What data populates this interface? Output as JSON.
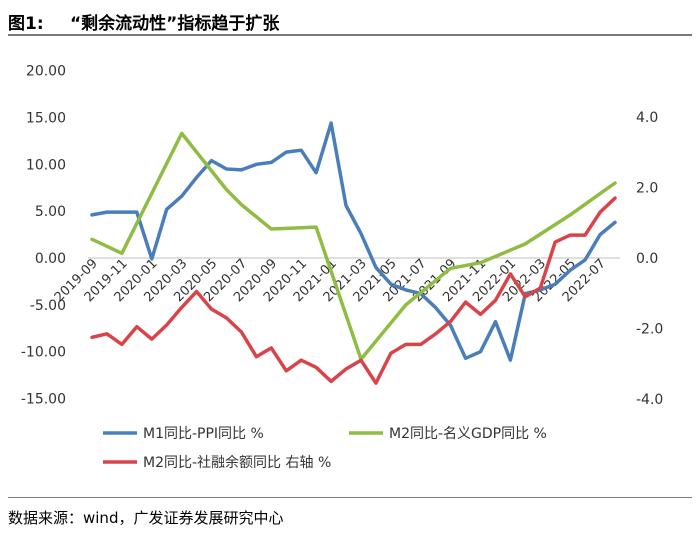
{
  "figure": {
    "prefix": "图1:",
    "title": "“剩余流动性”指标趋于扩张",
    "source": "数据来源：wind，广发证券发展研究中心"
  },
  "colors": {
    "m1_ppi": "#4a7ebb",
    "m2_gdp": "#8fbc42",
    "m2_tsf": "#d9434a",
    "axis": "#bfbfbf"
  },
  "chart_data": {
    "type": "line",
    "title": "“剩余流动性”指标趋于扩张",
    "legend_position": "bottom",
    "grid": false,
    "x": [
      "2019-09",
      "2019-10",
      "2019-11",
      "2019-12",
      "2020-01",
      "2020-02",
      "2020-03",
      "2020-04",
      "2020-05",
      "2020-06",
      "2020-07",
      "2020-08",
      "2020-09",
      "2020-10",
      "2020-11",
      "2020-12",
      "2021-01",
      "2021-02",
      "2021-03",
      "2021-04",
      "2021-05",
      "2021-06",
      "2021-07",
      "2021-08",
      "2021-09",
      "2021-10",
      "2021-11",
      "2021-12",
      "2022-01",
      "2022-02",
      "2022-03",
      "2022-04",
      "2022-05",
      "2022-06",
      "2022-07",
      "2022-08"
    ],
    "xticks": [
      "2019-09",
      "2019-11",
      "2020-01",
      "2020-03",
      "2020-05",
      "2020-07",
      "2020-09",
      "2020-11",
      "2021-01",
      "2021-03",
      "2021-05",
      "2021-07",
      "2021-09",
      "2021-11",
      "2022-01",
      "2022-03",
      "2022-05",
      "2022-07"
    ],
    "y_left": {
      "ticks": [
        "20.00",
        "15.00",
        "10.00",
        "5.00",
        "0.00",
        "-5.00",
        "-10.00",
        "-15.00"
      ],
      "range": [
        -15,
        20
      ]
    },
    "y_right": {
      "ticks": [
        "4.0",
        "2.0",
        "0.0",
        "-2.0",
        "-4.0"
      ],
      "range": [
        -4,
        5
      ]
    },
    "series": [
      {
        "name": "M1同比-PPI同比 %",
        "axis": "left",
        "values": [
          4.6,
          4.9,
          4.9,
          4.9,
          -0.1,
          5.2,
          6.6,
          8.6,
          10.4,
          9.5,
          9.4,
          10.0,
          10.2,
          11.3,
          11.5,
          9.1,
          14.4,
          5.6,
          2.6,
          -1.0,
          -2.8,
          -3.4,
          -3.8,
          -5.3,
          -7.2,
          -10.7,
          -10.0,
          -6.8,
          -10.9,
          -3.8,
          -3.4,
          -2.8,
          -1.3,
          -0.2,
          2.5,
          3.8
        ]
      },
      {
        "name": "M2同比-名义GDP同比 %",
        "axis": "left",
        "values": [
          2.0,
          null,
          0.5,
          null,
          null,
          null,
          13.3,
          null,
          null,
          7.3,
          5.7,
          null,
          3.1,
          null,
          null,
          3.3,
          null,
          null,
          -10.8,
          null,
          null,
          -5.0,
          null,
          null,
          -1.1,
          null,
          -0.5,
          null,
          null,
          1.5,
          null,
          null,
          4.6,
          null,
          null,
          8.0
        ]
      },
      {
        "name": "M2同比-社融余额同比 右轴 %",
        "axis": "right",
        "values": [
          -2.25,
          -2.15,
          -2.45,
          -1.95,
          -2.3,
          -1.9,
          -1.4,
          -0.95,
          -1.45,
          -1.7,
          -2.1,
          -2.8,
          -2.55,
          -3.2,
          -2.9,
          -3.1,
          -3.5,
          -3.15,
          -2.9,
          -3.55,
          -2.7,
          -2.45,
          -2.45,
          -2.15,
          -1.8,
          -1.25,
          -1.6,
          -1.2,
          -0.45,
          -1.1,
          -0.85,
          0.45,
          0.65,
          0.65,
          1.3,
          1.7
        ]
      }
    ],
    "legend": [
      {
        "label": "M1同比-PPI同比 %",
        "color": "#4a7ebb"
      },
      {
        "label": "M2同比-名义GDP同比 %",
        "color": "#8fbc42"
      },
      {
        "label": "M2同比-社融余额同比 右轴 %",
        "color": "#d9434a"
      }
    ]
  }
}
